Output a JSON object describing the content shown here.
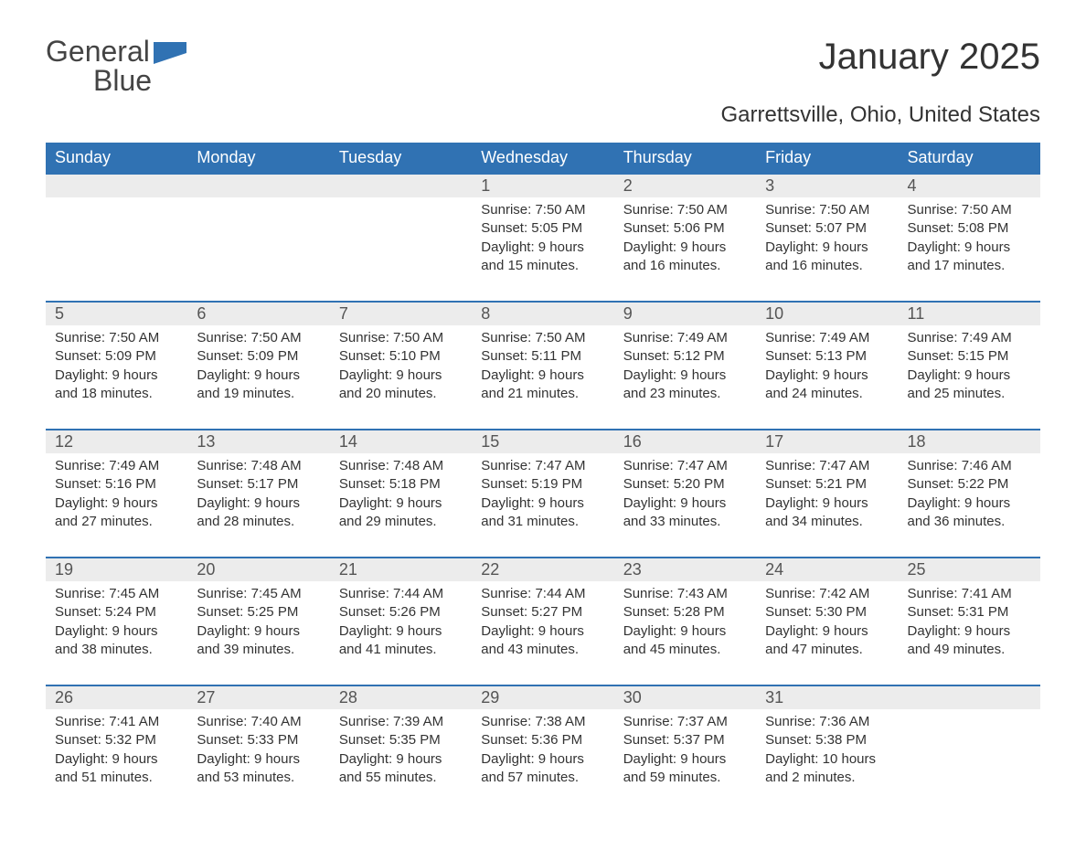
{
  "logo": {
    "word1": "General",
    "word2": "Blue"
  },
  "title": "January 2025",
  "location": "Garrettsville, Ohio, United States",
  "colors": {
    "header_bg": "#3072b3",
    "header_text": "#ffffff",
    "daynum_bg": "#ececec",
    "row_border": "#3072b3",
    "body_text": "#333333",
    "logo_gray": "#444444",
    "logo_blue": "#3072b3",
    "page_bg": "#ffffff"
  },
  "fonts": {
    "title_size_pt": 30,
    "location_size_pt": 18,
    "header_size_pt": 14,
    "daynum_size_pt": 14,
    "body_size_pt": 11
  },
  "weekdays": [
    "Sunday",
    "Monday",
    "Tuesday",
    "Wednesday",
    "Thursday",
    "Friday",
    "Saturday"
  ],
  "weeks": [
    [
      {
        "empty": true
      },
      {
        "empty": true
      },
      {
        "empty": true
      },
      {
        "day": "1",
        "sunrise": "Sunrise: 7:50 AM",
        "sunset": "Sunset: 5:05 PM",
        "daylight1": "Daylight: 9 hours",
        "daylight2": "and 15 minutes."
      },
      {
        "day": "2",
        "sunrise": "Sunrise: 7:50 AM",
        "sunset": "Sunset: 5:06 PM",
        "daylight1": "Daylight: 9 hours",
        "daylight2": "and 16 minutes."
      },
      {
        "day": "3",
        "sunrise": "Sunrise: 7:50 AM",
        "sunset": "Sunset: 5:07 PM",
        "daylight1": "Daylight: 9 hours",
        "daylight2": "and 16 minutes."
      },
      {
        "day": "4",
        "sunrise": "Sunrise: 7:50 AM",
        "sunset": "Sunset: 5:08 PM",
        "daylight1": "Daylight: 9 hours",
        "daylight2": "and 17 minutes."
      }
    ],
    [
      {
        "day": "5",
        "sunrise": "Sunrise: 7:50 AM",
        "sunset": "Sunset: 5:09 PM",
        "daylight1": "Daylight: 9 hours",
        "daylight2": "and 18 minutes."
      },
      {
        "day": "6",
        "sunrise": "Sunrise: 7:50 AM",
        "sunset": "Sunset: 5:09 PM",
        "daylight1": "Daylight: 9 hours",
        "daylight2": "and 19 minutes."
      },
      {
        "day": "7",
        "sunrise": "Sunrise: 7:50 AM",
        "sunset": "Sunset: 5:10 PM",
        "daylight1": "Daylight: 9 hours",
        "daylight2": "and 20 minutes."
      },
      {
        "day": "8",
        "sunrise": "Sunrise: 7:50 AM",
        "sunset": "Sunset: 5:11 PM",
        "daylight1": "Daylight: 9 hours",
        "daylight2": "and 21 minutes."
      },
      {
        "day": "9",
        "sunrise": "Sunrise: 7:49 AM",
        "sunset": "Sunset: 5:12 PM",
        "daylight1": "Daylight: 9 hours",
        "daylight2": "and 23 minutes."
      },
      {
        "day": "10",
        "sunrise": "Sunrise: 7:49 AM",
        "sunset": "Sunset: 5:13 PM",
        "daylight1": "Daylight: 9 hours",
        "daylight2": "and 24 minutes."
      },
      {
        "day": "11",
        "sunrise": "Sunrise: 7:49 AM",
        "sunset": "Sunset: 5:15 PM",
        "daylight1": "Daylight: 9 hours",
        "daylight2": "and 25 minutes."
      }
    ],
    [
      {
        "day": "12",
        "sunrise": "Sunrise: 7:49 AM",
        "sunset": "Sunset: 5:16 PM",
        "daylight1": "Daylight: 9 hours",
        "daylight2": "and 27 minutes."
      },
      {
        "day": "13",
        "sunrise": "Sunrise: 7:48 AM",
        "sunset": "Sunset: 5:17 PM",
        "daylight1": "Daylight: 9 hours",
        "daylight2": "and 28 minutes."
      },
      {
        "day": "14",
        "sunrise": "Sunrise: 7:48 AM",
        "sunset": "Sunset: 5:18 PM",
        "daylight1": "Daylight: 9 hours",
        "daylight2": "and 29 minutes."
      },
      {
        "day": "15",
        "sunrise": "Sunrise: 7:47 AM",
        "sunset": "Sunset: 5:19 PM",
        "daylight1": "Daylight: 9 hours",
        "daylight2": "and 31 minutes."
      },
      {
        "day": "16",
        "sunrise": "Sunrise: 7:47 AM",
        "sunset": "Sunset: 5:20 PM",
        "daylight1": "Daylight: 9 hours",
        "daylight2": "and 33 minutes."
      },
      {
        "day": "17",
        "sunrise": "Sunrise: 7:47 AM",
        "sunset": "Sunset: 5:21 PM",
        "daylight1": "Daylight: 9 hours",
        "daylight2": "and 34 minutes."
      },
      {
        "day": "18",
        "sunrise": "Sunrise: 7:46 AM",
        "sunset": "Sunset: 5:22 PM",
        "daylight1": "Daylight: 9 hours",
        "daylight2": "and 36 minutes."
      }
    ],
    [
      {
        "day": "19",
        "sunrise": "Sunrise: 7:45 AM",
        "sunset": "Sunset: 5:24 PM",
        "daylight1": "Daylight: 9 hours",
        "daylight2": "and 38 minutes."
      },
      {
        "day": "20",
        "sunrise": "Sunrise: 7:45 AM",
        "sunset": "Sunset: 5:25 PM",
        "daylight1": "Daylight: 9 hours",
        "daylight2": "and 39 minutes."
      },
      {
        "day": "21",
        "sunrise": "Sunrise: 7:44 AM",
        "sunset": "Sunset: 5:26 PM",
        "daylight1": "Daylight: 9 hours",
        "daylight2": "and 41 minutes."
      },
      {
        "day": "22",
        "sunrise": "Sunrise: 7:44 AM",
        "sunset": "Sunset: 5:27 PM",
        "daylight1": "Daylight: 9 hours",
        "daylight2": "and 43 minutes."
      },
      {
        "day": "23",
        "sunrise": "Sunrise: 7:43 AM",
        "sunset": "Sunset: 5:28 PM",
        "daylight1": "Daylight: 9 hours",
        "daylight2": "and 45 minutes."
      },
      {
        "day": "24",
        "sunrise": "Sunrise: 7:42 AM",
        "sunset": "Sunset: 5:30 PM",
        "daylight1": "Daylight: 9 hours",
        "daylight2": "and 47 minutes."
      },
      {
        "day": "25",
        "sunrise": "Sunrise: 7:41 AM",
        "sunset": "Sunset: 5:31 PM",
        "daylight1": "Daylight: 9 hours",
        "daylight2": "and 49 minutes."
      }
    ],
    [
      {
        "day": "26",
        "sunrise": "Sunrise: 7:41 AM",
        "sunset": "Sunset: 5:32 PM",
        "daylight1": "Daylight: 9 hours",
        "daylight2": "and 51 minutes."
      },
      {
        "day": "27",
        "sunrise": "Sunrise: 7:40 AM",
        "sunset": "Sunset: 5:33 PM",
        "daylight1": "Daylight: 9 hours",
        "daylight2": "and 53 minutes."
      },
      {
        "day": "28",
        "sunrise": "Sunrise: 7:39 AM",
        "sunset": "Sunset: 5:35 PM",
        "daylight1": "Daylight: 9 hours",
        "daylight2": "and 55 minutes."
      },
      {
        "day": "29",
        "sunrise": "Sunrise: 7:38 AM",
        "sunset": "Sunset: 5:36 PM",
        "daylight1": "Daylight: 9 hours",
        "daylight2": "and 57 minutes."
      },
      {
        "day": "30",
        "sunrise": "Sunrise: 7:37 AM",
        "sunset": "Sunset: 5:37 PM",
        "daylight1": "Daylight: 9 hours",
        "daylight2": "and 59 minutes."
      },
      {
        "day": "31",
        "sunrise": "Sunrise: 7:36 AM",
        "sunset": "Sunset: 5:38 PM",
        "daylight1": "Daylight: 10 hours",
        "daylight2": "and 2 minutes."
      },
      {
        "empty": true
      }
    ]
  ]
}
